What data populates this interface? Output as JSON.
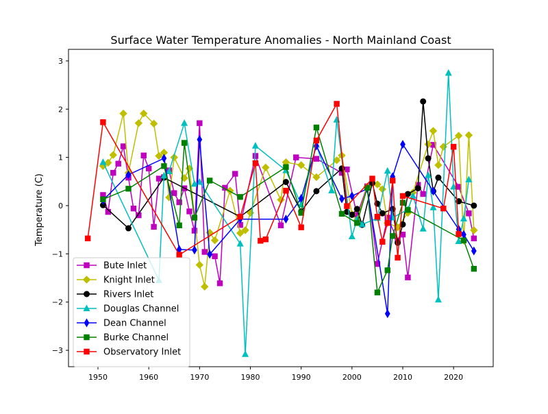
{
  "chart_data": {
    "type": "line",
    "title": "Surface Water Temperature Anomalies - North Mainland Coast",
    "xlabel": "",
    "ylabel": "Temperature (C)",
    "xlim": [
      1944.2,
      2027.8
    ],
    "ylim": [
      -3.34,
      3.24
    ],
    "xticks": [
      1950,
      1960,
      1970,
      1980,
      1990,
      2000,
      2010,
      2020
    ],
    "yticks": [
      -3,
      -2,
      -1,
      0,
      1,
      2,
      3
    ],
    "xtick_labels": [
      "1950",
      "1960",
      "1970",
      "1980",
      "1990",
      "2000",
      "2010",
      "2020"
    ],
    "ytick_labels": [
      "−3",
      "−2",
      "−1",
      "0",
      "1",
      "2",
      "3"
    ],
    "legend_position": "lower-left",
    "series": [
      {
        "name": "Bute Inlet",
        "color": "#bf00bf",
        "marker": "square",
        "x": [
          1951,
          1952,
          1953,
          1954,
          1955,
          1956,
          1957,
          1958,
          1959,
          1960,
          1961,
          1962,
          1963,
          1964,
          1965,
          1966,
          1967,
          1968,
          1969,
          1970,
          1971,
          1973,
          1974,
          1975,
          1977,
          1978,
          1981,
          1986,
          1989,
          1993,
          1998,
          1999,
          2001,
          2003,
          2005,
          2007,
          2009,
          2010,
          2011,
          2013,
          2014,
          2016,
          2021,
          2023,
          2024
        ],
        "y": [
          0.22,
          -0.13,
          0.68,
          0.87,
          1.23,
          0.58,
          -0.06,
          -0.2,
          1.04,
          0.77,
          -0.44,
          0.56,
          0.59,
          0.73,
          0.26,
          0.07,
          0.36,
          -0.12,
          -0.52,
          1.71,
          -0.96,
          -1.05,
          -1.61,
          0.37,
          0.66,
          -0.4,
          1.03,
          -0.41,
          1.0,
          0.97,
          0.68,
          0.75,
          -0.2,
          0.4,
          -1.21,
          -0.25,
          -0.72,
          -0.6,
          -1.49,
          0.43,
          0.24,
          1.26,
          0.39,
          -0.16,
          -0.68
        ]
      },
      {
        "name": "Knight Inlet",
        "color": "#bfbf00",
        "marker": "diamond",
        "x": [
          1951,
          1952,
          1953,
          1955,
          1956,
          1958,
          1959,
          1961,
          1962,
          1963,
          1964,
          1965,
          1967,
          1968,
          1970,
          1971,
          1972,
          1973,
          1976,
          1978,
          1979,
          1980,
          1983,
          1986,
          1987,
          1990,
          1993,
          1997,
          1998,
          2000,
          2001,
          2003,
          2005,
          2006,
          2007,
          2009,
          2011,
          2012,
          2015,
          2016,
          2017,
          2018,
          2021,
          2022,
          2023,
          2024
        ],
        "y": [
          0.82,
          0.89,
          1.05,
          1.91,
          0.68,
          1.71,
          1.91,
          1.7,
          1.03,
          1.1,
          0.17,
          1.0,
          0.57,
          0.77,
          -1.23,
          -1.68,
          -0.56,
          -0.72,
          0.31,
          -0.57,
          -0.51,
          -0.15,
          0.79,
          0.12,
          0.9,
          0.84,
          0.59,
          0.94,
          1.04,
          -0.18,
          -0.3,
          0.39,
          0.44,
          0.34,
          -0.36,
          -0.45,
          -0.15,
          0.27,
          1.27,
          1.55,
          0.84,
          1.22,
          1.45,
          -0.73,
          1.46,
          -0.51
        ]
      },
      {
        "name": "Rivers Inlet",
        "color": "#000000",
        "marker": "circle",
        "x": [
          1951,
          1956,
          1963,
          1978,
          1987,
          1990,
          1993,
          1998,
          1999,
          2000,
          2001,
          2002,
          2004,
          2005,
          2006,
          2008,
          2009,
          2010,
          2011,
          2013,
          2014,
          2015,
          2016,
          2017,
          2021,
          2024
        ],
        "y": [
          0.01,
          -0.47,
          0.58,
          -0.23,
          0.49,
          -0.12,
          0.3,
          0.77,
          -0.13,
          -0.19,
          -0.07,
          -0.4,
          0.47,
          0.04,
          -0.16,
          -0.07,
          -0.77,
          -0.39,
          0.24,
          0.36,
          2.16,
          0.98,
          0.3,
          0.58,
          0.09,
          0.0
        ]
      },
      {
        "name": "Douglas Channel",
        "color": "#00bfbf",
        "marker": "triangle",
        "x": [
          1951,
          1962,
          1963,
          1964,
          1967,
          1969,
          1970,
          1978,
          1979,
          1981,
          1987,
          1990,
          1993,
          1996,
          1997,
          2000,
          2001,
          2002,
          2005,
          2007,
          2008,
          2011,
          2012,
          2014,
          2015,
          2016,
          2017,
          2019,
          2020,
          2021,
          2022,
          2023
        ],
        "y": [
          0.9,
          -1.55,
          0.62,
          0.71,
          1.71,
          0.45,
          0.49,
          -0.79,
          -3.08,
          1.24,
          0.73,
          0.02,
          1.26,
          0.31,
          1.78,
          -0.64,
          -0.28,
          -0.39,
          -0.26,
          0.72,
          -0.25,
          -0.08,
          0.2,
          -0.48,
          0.63,
          -0.04,
          -1.95,
          2.75,
          0.39,
          -0.74,
          -0.27,
          0.54
        ]
      },
      {
        "name": "Dean Channel",
        "color": "#0000ff",
        "marker": "thin_diamond",
        "x": [
          1951,
          1956,
          1963,
          1966,
          1969,
          1970,
          1972,
          1978,
          1987,
          1990,
          1993,
          1998,
          2000,
          2003,
          2007,
          2008,
          2010,
          2016,
          2021,
          2022,
          2024
        ],
        "y": [
          0.11,
          0.64,
          0.98,
          -0.91,
          -0.92,
          1.37,
          -1.01,
          -0.28,
          -0.28,
          0.15,
          1.24,
          0.14,
          0.2,
          0.35,
          -2.24,
          0.6,
          1.27,
          0.3,
          -0.49,
          -0.6,
          -0.94
        ]
      },
      {
        "name": "Burke Channel",
        "color": "#008000",
        "marker": "square",
        "x": [
          1951,
          1956,
          1963,
          1966,
          1967,
          1969,
          1972,
          1978,
          1987,
          1990,
          1993,
          1998,
          2001,
          2003,
          2005,
          2007,
          2008,
          2010,
          2011,
          2022,
          2024
        ],
        "y": [
          0.13,
          0.35,
          0.82,
          -0.41,
          1.3,
          -0.25,
          0.52,
          0.18,
          0.8,
          -0.15,
          1.62,
          -0.17,
          -0.36,
          0.37,
          -1.8,
          -1.34,
          -0.63,
          0.06,
          -0.09,
          -0.72,
          -1.31
        ]
      },
      {
        "name": "Observatory Inlet",
        "color": "#ff0000",
        "marker": "square",
        "x": [
          1948,
          1951,
          1966,
          1978,
          1981,
          1982,
          1983,
          1987,
          1990,
          1993,
          1997,
          1999,
          2004,
          2005,
          2006,
          2007,
          2008,
          2009,
          2010,
          2018,
          2020,
          2021
        ],
        "y": [
          -0.68,
          1.73,
          -1.02,
          -0.23,
          0.88,
          -0.73,
          -0.7,
          0.31,
          -0.45,
          1.35,
          2.11,
          -0.01,
          0.56,
          -0.23,
          -0.75,
          -0.36,
          0.52,
          -1.08,
          0.2,
          -0.06,
          1.22,
          -0.59
        ]
      }
    ]
  }
}
